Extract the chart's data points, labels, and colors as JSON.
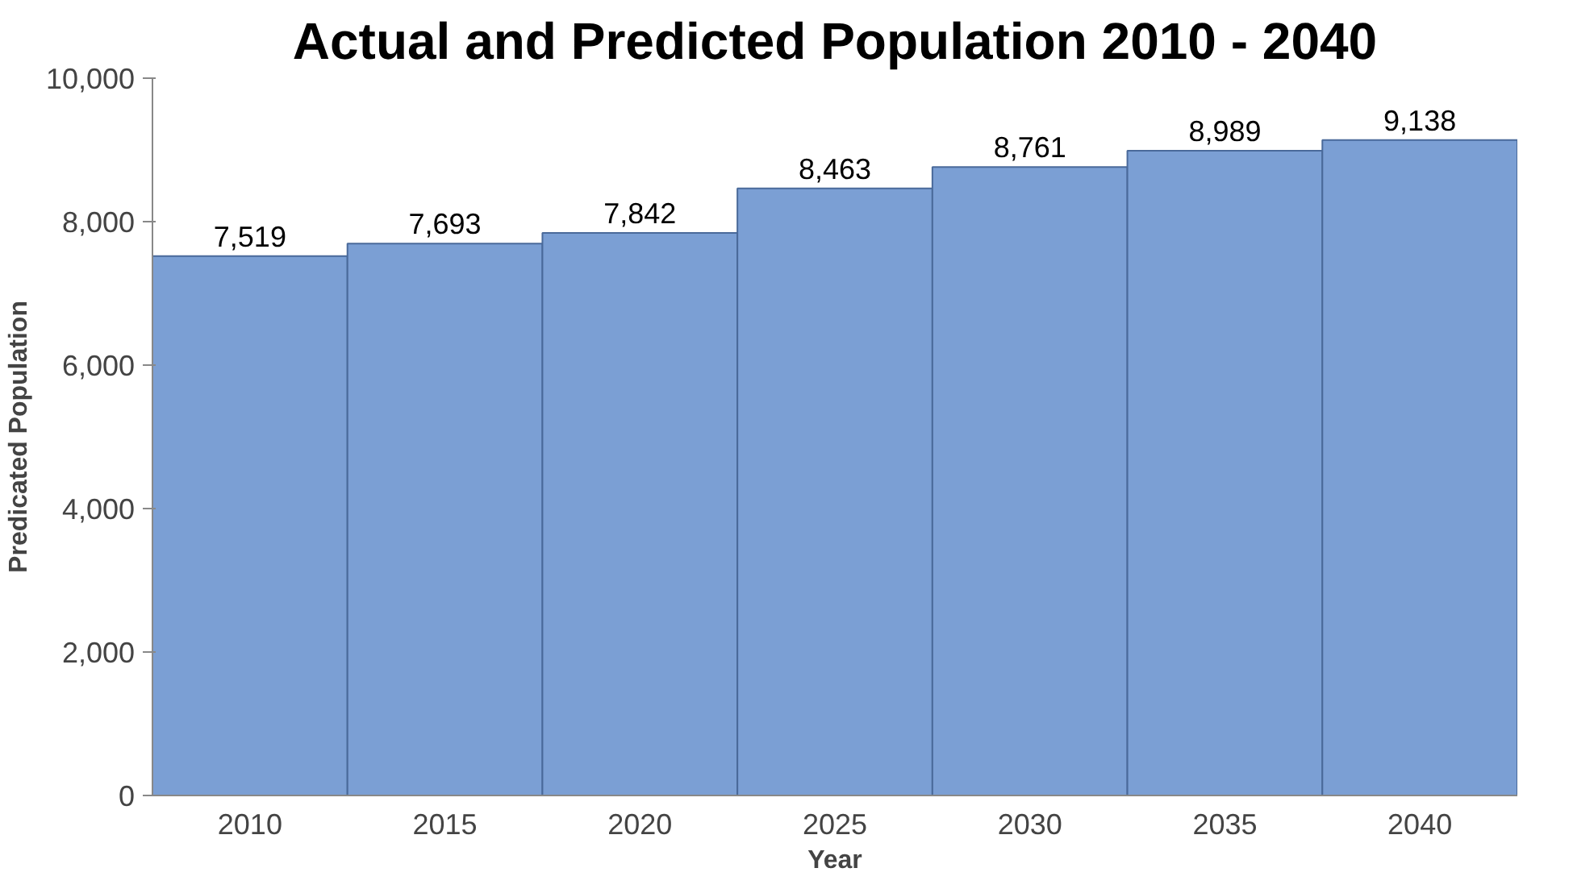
{
  "chart_data": {
    "type": "bar",
    "title": "Actual and Predicted Population 2010 - 2040",
    "xlabel": "Year",
    "ylabel": "Predicated Population",
    "categories": [
      "2010",
      "2015",
      "2020",
      "2025",
      "2030",
      "2035",
      "2040"
    ],
    "values": [
      7519,
      7693,
      7842,
      8463,
      8761,
      8989,
      9138
    ],
    "color": "#7b9fd4",
    "ylim": [
      0,
      10000
    ],
    "yticks": [
      {
        "value": 0,
        "label": "0"
      },
      {
        "value": 2000,
        "label": "2,000"
      },
      {
        "value": 4000,
        "label": "4,000"
      },
      {
        "value": 6000,
        "label": "6,000"
      },
      {
        "value": 8000,
        "label": "8,000"
      },
      {
        "value": 10000,
        "label": "10,000"
      }
    ],
    "grid": false,
    "value_labels": [
      "7,519",
      "7,693",
      "7,842",
      "8,463",
      "8,761",
      "8,989",
      "9,138"
    ]
  }
}
